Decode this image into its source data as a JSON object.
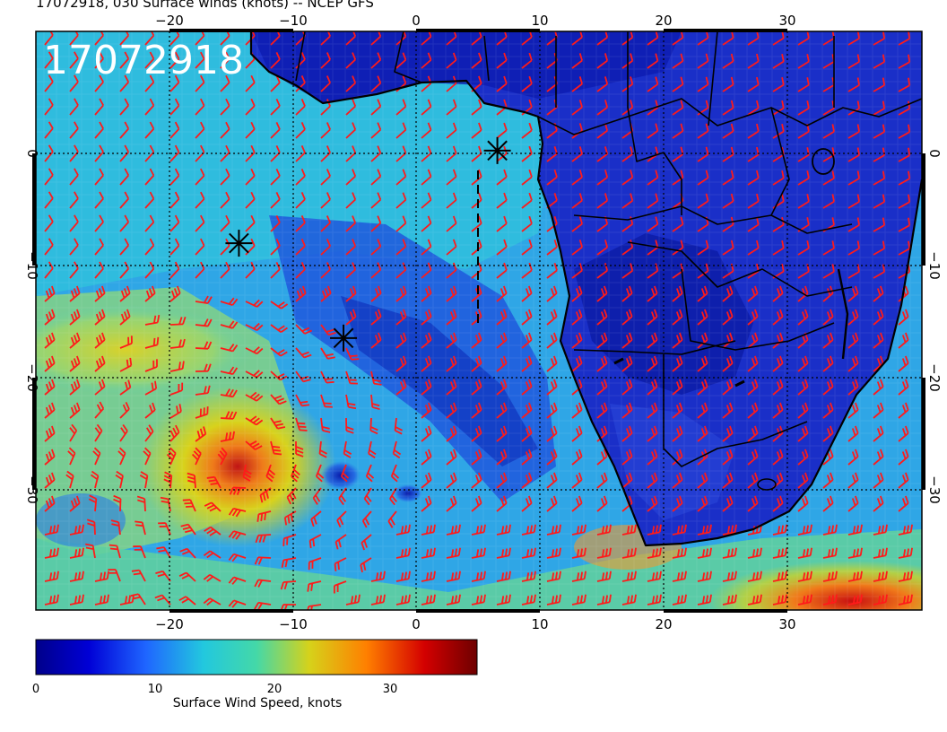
{
  "title": "17072918, 030 Surface winds (knots) -- NCEP GFS",
  "stamp": "17072918",
  "map": {
    "lon_range": [
      -31,
      41
    ],
    "lat_range": [
      -40,
      10
    ],
    "lon_ticks": [
      "−20",
      "−10",
      "0",
      "10",
      "20",
      "30"
    ],
    "lat_ticks": [
      "0",
      "−10",
      "−20",
      "−30"
    ],
    "grid": "dotted 10°",
    "barb_color": "#ff1a1a",
    "coast_color": "#000000"
  },
  "markers": [
    {
      "name": "star-north",
      "lon": 6.5,
      "lat": -0.3
    },
    {
      "name": "star-west",
      "lon": -14.5,
      "lat": -8.3
    },
    {
      "name": "star-south",
      "lon": -6,
      "lat": -16.5
    }
  ],
  "colorbar": {
    "label": "Surface Wind Speed, knots",
    "ticks": [
      "0",
      "10",
      "20",
      "30"
    ],
    "range": [
      0,
      37
    ],
    "colors": [
      "#00008a",
      "#0000d6",
      "#1f66ff",
      "#22c8de",
      "#44d8a8",
      "#d6d21a",
      "#ff7f00",
      "#d40000",
      "#6e0000"
    ]
  }
}
